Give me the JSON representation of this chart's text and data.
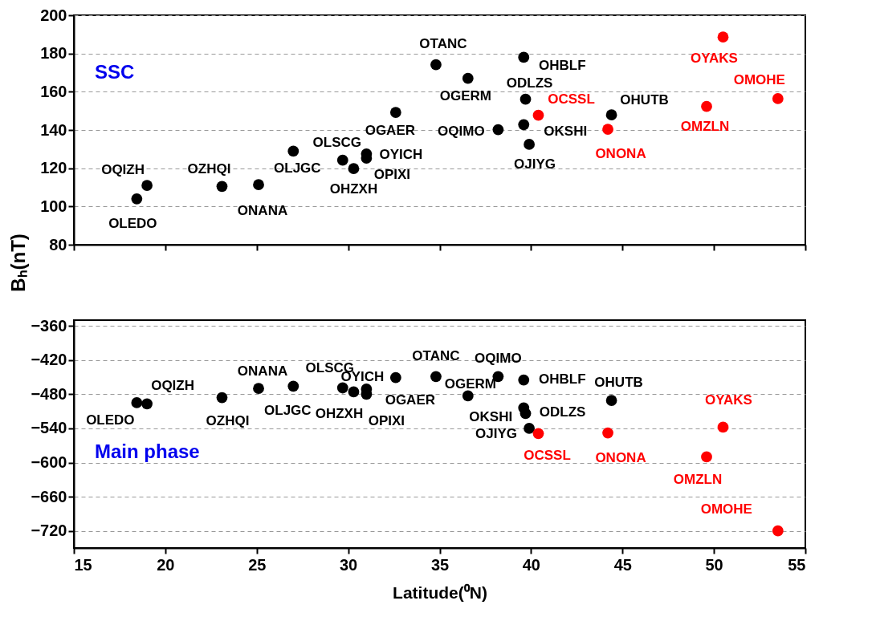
{
  "chart_data": [
    {
      "type": "scatter",
      "ylabel": "Bₕ(nT)",
      "xlim": [
        15,
        55
      ],
      "xticks": [
        15,
        20,
        25,
        30,
        35,
        40,
        45,
        50,
        55
      ],
      "ylim": [
        80,
        200
      ],
      "yticks": [
        80,
        100,
        120,
        140,
        160,
        180,
        200
      ],
      "grid": "y",
      "legend": false,
      "marker": "circle",
      "tick_labels": "y",
      "series": [
        {
          "color": "#000000",
          "x": [
            18.44,
            19.0,
            23.1,
            25.1,
            27.0,
            29.7,
            30.3,
            31.0,
            31.0,
            32.6,
            34.8,
            36.55,
            39.6,
            39.7,
            38.2,
            39.6,
            39.9,
            44.4
          ],
          "values": [
            104,
            111,
            110.5,
            111.4,
            128.9,
            124.2,
            119.8,
            127.5,
            125.3,
            149.2,
            174.1,
            167,
            178,
            156.1,
            140.2,
            142.8,
            132.5,
            147.9
          ]
        },
        {
          "color": "#ff0000",
          "x": [
            40.4,
            44.2,
            50.5,
            49.6,
            53.5
          ],
          "values": [
            147.7,
            140.4,
            188.6,
            152.3,
            156.4
          ]
        }
      ],
      "annotations": [
        {
          "text": "OLEDO",
          "x": 18.44,
          "y": 104
        },
        {
          "text": "OQIZH",
          "x": 19.0,
          "y": 111
        },
        {
          "text": "OZHQI",
          "x": 23.1,
          "y": 110.5
        },
        {
          "text": "ONANA",
          "x": 25.1,
          "y": 111.4
        },
        {
          "text": "OLJGC",
          "x": 27.0,
          "y": 128.9
        },
        {
          "text": "OLSCG",
          "x": 29.7,
          "y": 124.2
        },
        {
          "text": "OHZXH",
          "x": 30.3,
          "y": 119.8
        },
        {
          "text": "OYICH",
          "x": 31.0,
          "y": 127.5
        },
        {
          "text": "OPIXI",
          "x": 31.0,
          "y": 125.3
        },
        {
          "text": "OGAER",
          "x": 32.6,
          "y": 149.2
        },
        {
          "text": "OTANC",
          "x": 34.8,
          "y": 174.1
        },
        {
          "text": "OGERM",
          "x": 36.55,
          "y": 167
        },
        {
          "text": "OHBLF",
          "x": 39.6,
          "y": 178
        },
        {
          "text": "ODLZS",
          "x": 39.7,
          "y": 156.1
        },
        {
          "text": "OQIMO",
          "x": 38.2,
          "y": 140.2
        },
        {
          "text": "OKSHI",
          "x": 39.6,
          "y": 142.8
        },
        {
          "text": "OJIYG",
          "x": 39.9,
          "y": 132.5
        },
        {
          "text": "OHUTB",
          "x": 44.4,
          "y": 147.9
        },
        {
          "text": "OCSSL",
          "x": 40.4,
          "y": 147.7
        },
        {
          "text": "ONONA",
          "x": 44.2,
          "y": 140.4
        },
        {
          "text": "OYAKS",
          "x": 50.5,
          "y": 188.6
        },
        {
          "text": "OMZLN",
          "x": 49.6,
          "y": 152.3
        },
        {
          "text": "OMOHE",
          "x": 53.5,
          "y": 156.4
        },
        "SSC"
      ]
    },
    {
      "type": "scatter",
      "xlabel": "Latitude(⁰N)",
      "xlim": [
        15,
        55
      ],
      "xticks": [
        15,
        20,
        25,
        30,
        35,
        40,
        45,
        50,
        55
      ],
      "ylim": [
        -750,
        -350
      ],
      "yticks": [
        -360,
        -420,
        -480,
        -540,
        -600,
        -660,
        -720
      ],
      "grid": "y",
      "legend": false,
      "marker": "circle",
      "series": [
        {
          "color": "#000000",
          "x": [
            18.44,
            19.0,
            23.1,
            25.1,
            27.0,
            29.7,
            30.3,
            31.0,
            31.0,
            32.6,
            34.8,
            36.55,
            39.6,
            39.7,
            38.2,
            39.6,
            39.9,
            44.4
          ],
          "values": [
            -495,
            -497,
            -486,
            -470,
            -466,
            -469,
            -476,
            -471,
            -480,
            -451,
            -449,
            -483,
            -455,
            -514,
            -449,
            -504,
            -540,
            -491
          ]
        },
        {
          "color": "#ff0000",
          "x": [
            40.4,
            44.2,
            50.5,
            49.6,
            53.5
          ],
          "values": [
            -549,
            -548,
            -538,
            -590,
            -720
          ]
        }
      ],
      "annotations": [
        {
          "text": "OLEDO",
          "x": 18.44,
          "y": -495
        },
        {
          "text": "OQIZH",
          "x": 19.0,
          "y": -497
        },
        {
          "text": "OZHQI",
          "x": 23.1,
          "y": -486
        },
        {
          "text": "ONANA",
          "x": 25.1,
          "y": -470
        },
        {
          "text": "OLJGC",
          "x": 27.0,
          "y": -466
        },
        {
          "text": "OLSCG",
          "x": 29.7,
          "y": -469
        },
        {
          "text": "OHZXH",
          "x": 30.3,
          "y": -476
        },
        {
          "text": "OYICH",
          "x": 31.0,
          "y": -471
        },
        {
          "text": "OPIXI",
          "x": 31.0,
          "y": -480
        },
        {
          "text": "OGAER",
          "x": 32.6,
          "y": -451
        },
        {
          "text": "OTANC",
          "x": 34.8,
          "y": -449
        },
        {
          "text": "OGERM",
          "x": 36.55,
          "y": -483
        },
        {
          "text": "OHBLF",
          "x": 39.6,
          "y": -455
        },
        {
          "text": "ODLZS",
          "x": 39.7,
          "y": -514
        },
        {
          "text": "OQIMO",
          "x": 38.2,
          "y": -449
        },
        {
          "text": "OKSHI",
          "x": 39.6,
          "y": -504
        },
        {
          "text": "OJIYG",
          "x": 39.9,
          "y": -540
        },
        {
          "text": "OHUTB",
          "x": 44.4,
          "y": -491
        },
        {
          "text": "OCSSL",
          "x": 40.4,
          "y": -549
        },
        {
          "text": "ONONA",
          "x": 44.2,
          "y": -548
        },
        {
          "text": "OYAKS",
          "x": 50.5,
          "y": -538
        },
        {
          "text": "OMZLN",
          "x": 49.6,
          "y": -590
        },
        {
          "text": "OMOHE",
          "x": 53.5,
          "y": -720
        },
        "Main phase"
      ]
    }
  ]
}
